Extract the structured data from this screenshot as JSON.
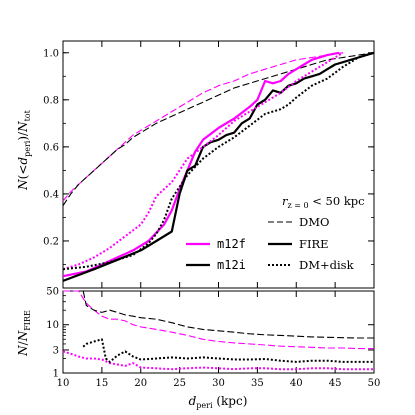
{
  "chart_data": [
    {
      "type": "line",
      "panel": "top",
      "ylabel": "N(<d_peri)/N_tot",
      "xlim": [
        10,
        50
      ],
      "ylim": [
        0,
        1.05
      ],
      "yticks": [
        0.2,
        0.4,
        0.6,
        0.8,
        1.0
      ],
      "yticklabels": [
        "0.2",
        "0.4",
        "0.6",
        "0.8",
        "1.0"
      ],
      "annotation": "r_{z=0} < 50 kpc",
      "legend_style": [
        {
          "label": "DMO",
          "dash": "dashed"
        },
        {
          "label": "FIRE",
          "dash": "solid"
        },
        {
          "label": "DM+disk",
          "dash": "dotted"
        }
      ],
      "legend_color": [
        {
          "label": "m12f",
          "color": "#ff00ff"
        },
        {
          "label": "m12i",
          "color": "#000000"
        }
      ],
      "series": [
        {
          "host": "m12f",
          "color": "#ff00ff",
          "style": "dashed",
          "x": [
            10,
            11,
            12,
            13,
            14,
            15,
            16,
            17,
            18,
            19,
            20,
            22,
            24,
            26,
            28,
            30,
            32,
            34,
            36,
            38,
            40,
            42,
            44,
            46
          ],
          "y": [
            0.37,
            0.41,
            0.44,
            0.47,
            0.5,
            0.53,
            0.56,
            0.59,
            0.62,
            0.65,
            0.67,
            0.71,
            0.75,
            0.79,
            0.83,
            0.86,
            0.88,
            0.91,
            0.93,
            0.95,
            0.97,
            0.98,
            0.99,
            1.0
          ]
        },
        {
          "host": "m12i",
          "color": "#000000",
          "style": "dashed",
          "x": [
            10,
            11,
            12,
            13,
            14,
            15,
            16,
            17,
            18,
            19,
            20,
            22,
            24,
            26,
            28,
            30,
            32,
            34,
            36,
            38,
            40,
            42,
            44,
            46,
            48,
            50
          ],
          "y": [
            0.35,
            0.4,
            0.44,
            0.47,
            0.5,
            0.53,
            0.56,
            0.59,
            0.61,
            0.64,
            0.66,
            0.7,
            0.73,
            0.76,
            0.79,
            0.82,
            0.85,
            0.87,
            0.89,
            0.91,
            0.93,
            0.95,
            0.97,
            0.98,
            0.99,
            1.0
          ]
        },
        {
          "host": "m12f",
          "color": "#ff00ff",
          "style": "solid",
          "x": [
            10,
            13,
            15,
            17,
            19,
            21,
            23,
            24,
            25,
            26,
            27,
            28,
            30,
            32,
            34,
            35,
            36,
            37,
            38,
            39,
            40,
            41,
            42,
            44,
            45.5
          ],
          "y": [
            0.05,
            0.07,
            0.1,
            0.13,
            0.16,
            0.2,
            0.27,
            0.33,
            0.42,
            0.5,
            0.58,
            0.63,
            0.68,
            0.72,
            0.77,
            0.8,
            0.88,
            0.87,
            0.88,
            0.91,
            0.93,
            0.95,
            0.97,
            0.99,
            1.0
          ]
        },
        {
          "host": "m12i",
          "color": "#000000",
          "style": "solid",
          "x": [
            10,
            14,
            17,
            20,
            22,
            24,
            25,
            26,
            27,
            28,
            29,
            30,
            31,
            32,
            33,
            34,
            35,
            36,
            37,
            38,
            39,
            40,
            41,
            42,
            43,
            44,
            45,
            46,
            47,
            48,
            49,
            50
          ],
          "y": [
            0.03,
            0.08,
            0.12,
            0.16,
            0.2,
            0.24,
            0.4,
            0.5,
            0.52,
            0.6,
            0.62,
            0.63,
            0.65,
            0.66,
            0.7,
            0.72,
            0.78,
            0.8,
            0.84,
            0.83,
            0.86,
            0.87,
            0.89,
            0.9,
            0.91,
            0.93,
            0.95,
            0.96,
            0.97,
            0.98,
            0.99,
            1.0
          ]
        },
        {
          "host": "m12f",
          "color": "#ff00ff",
          "style": "dotted",
          "x": [
            10,
            12,
            14,
            16,
            18,
            20,
            21,
            22,
            24,
            26,
            28,
            30,
            32,
            34,
            36,
            38,
            40,
            42,
            44,
            46
          ],
          "y": [
            0.08,
            0.1,
            0.13,
            0.17,
            0.22,
            0.27,
            0.32,
            0.39,
            0.45,
            0.55,
            0.6,
            0.65,
            0.71,
            0.75,
            0.79,
            0.83,
            0.88,
            0.92,
            0.96,
            1.0
          ]
        },
        {
          "host": "m12i",
          "color": "#000000",
          "style": "dotted",
          "x": [
            10,
            13,
            16,
            19,
            21,
            22,
            23,
            24,
            25,
            26,
            28,
            30,
            32,
            34,
            36,
            38,
            39,
            40,
            42,
            44,
            46,
            48,
            50
          ],
          "y": [
            0.08,
            0.09,
            0.11,
            0.14,
            0.19,
            0.23,
            0.29,
            0.38,
            0.43,
            0.48,
            0.55,
            0.6,
            0.64,
            0.69,
            0.74,
            0.76,
            0.78,
            0.81,
            0.86,
            0.89,
            0.94,
            0.98,
            1.0
          ]
        }
      ]
    },
    {
      "type": "line",
      "panel": "bottom",
      "xlabel": "d_peri (kpc)",
      "ylabel": "N/N_FIRE",
      "xlim": [
        10,
        50
      ],
      "ylim": [
        1,
        50
      ],
      "yscale": "log",
      "xticks": [
        10,
        15,
        20,
        25,
        30,
        35,
        40,
        45,
        50
      ],
      "yticks": [
        1,
        3,
        10,
        50
      ],
      "yticklabels": [
        "1",
        "3",
        "10",
        "50"
      ],
      "series": [
        {
          "host": "m12f",
          "color": "#ff00ff",
          "style": "dashed",
          "x": [
            10,
            11,
            12,
            13,
            14,
            15,
            16,
            17,
            18,
            19,
            20,
            22,
            24,
            26,
            28,
            30,
            32,
            34,
            36,
            38,
            40,
            42,
            44,
            46,
            48,
            50
          ],
          "y": [
            50,
            50,
            50,
            28,
            20,
            15,
            13,
            13,
            12,
            10,
            9,
            8,
            7,
            6,
            5,
            4.5,
            4.2,
            4.0,
            3.8,
            3.6,
            3.5,
            3.4,
            3.3,
            3.3,
            3.2,
            3.2
          ]
        },
        {
          "host": "m12i",
          "color": "#000000",
          "style": "dashed",
          "x": [
            12.6,
            13,
            14,
            15,
            16,
            17,
            18,
            19,
            20,
            22,
            24,
            26,
            28,
            30,
            32,
            34,
            36,
            38,
            40,
            42,
            44,
            46,
            48,
            50
          ],
          "y": [
            50,
            25,
            20,
            18,
            20,
            18,
            16,
            15,
            14,
            13,
            11,
            9,
            8,
            7.5,
            7,
            6.5,
            6.2,
            6.0,
            5.8,
            5.6,
            5.5,
            5.4,
            5.3,
            5.3
          ]
        },
        {
          "host": "m12f",
          "color": "#ff00ff",
          "style": "dotted",
          "x": [
            10,
            11,
            12,
            13,
            14,
            15,
            16,
            17,
            18,
            19,
            20,
            22,
            24,
            26,
            28,
            30,
            32,
            34,
            36,
            38,
            40,
            42,
            44,
            46,
            48,
            50
          ],
          "y": [
            2.8,
            2.5,
            2.2,
            2.0,
            2.0,
            1.9,
            1.6,
            1.5,
            1.4,
            1.6,
            1.3,
            1.25,
            1.2,
            1.25,
            1.3,
            1.25,
            1.2,
            1.25,
            1.25,
            1.2,
            1.2,
            1.25,
            1.25,
            1.2,
            1.2,
            1.2
          ]
        },
        {
          "host": "m12i",
          "color": "#000000",
          "style": "dotted",
          "x": [
            12.6,
            13,
            14,
            15,
            15.5,
            16,
            17,
            18,
            19,
            20,
            22,
            24,
            26,
            28,
            30,
            32,
            34,
            36,
            38,
            40,
            42,
            44,
            46,
            48,
            50
          ],
          "y": [
            3.5,
            4.0,
            4.5,
            5.0,
            2.0,
            1.7,
            2.3,
            2.8,
            2.2,
            1.9,
            2.0,
            2.1,
            2.0,
            2.1,
            2.0,
            1.9,
            1.9,
            1.95,
            1.8,
            1.7,
            1.8,
            1.8,
            1.7,
            1.7,
            1.7
          ]
        }
      ]
    }
  ]
}
